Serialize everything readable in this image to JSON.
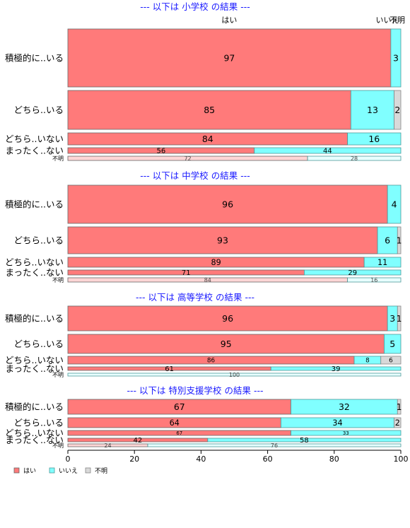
{
  "chart_data": {
    "type": "bar",
    "orientation": "horizontal",
    "stacked": true,
    "xlim": [
      0,
      100
    ],
    "xticks": [
      0,
      20,
      40,
      60,
      80,
      100
    ],
    "column_headers": [
      "はい",
      "いいえ",
      "不明"
    ],
    "legend": {
      "placement": "bottom-left",
      "entries": [
        "はい",
        "いいえ",
        "不明"
      ]
    },
    "series_colors": [
      "#ff7a7a",
      "#80ffff",
      "#d9d9d9"
    ],
    "panels": [
      {
        "title": "--- 以下は 小学校 の結果 ---",
        "rows": [
          {
            "label": "積極的に..いる",
            "values": [
              97,
              3,
              0
            ]
          },
          {
            "label": "どちら..いる",
            "values": [
              85,
              13,
              2
            ]
          },
          {
            "label": "どちら..いない",
            "values": [
              84,
              16,
              0
            ]
          },
          {
            "label": "まったく..ない",
            "values": [
              56,
              44,
              0
            ]
          },
          {
            "label": "不明",
            "values": [
              72,
              28,
              0
            ]
          }
        ]
      },
      {
        "title": "--- 以下は 中学校 の結果 ---",
        "rows": [
          {
            "label": "積極的に..いる",
            "values": [
              96,
              4,
              0
            ]
          },
          {
            "label": "どちら..いる",
            "values": [
              93,
              6,
              1
            ]
          },
          {
            "label": "どちら..いない",
            "values": [
              89,
              11,
              0
            ]
          },
          {
            "label": "まったく..ない",
            "values": [
              71,
              29,
              0
            ]
          },
          {
            "label": "不明",
            "values": [
              84,
              16,
              0
            ]
          }
        ]
      },
      {
        "title": "--- 以下は 高等学校 の結果 ---",
        "rows": [
          {
            "label": "積極的に..いる",
            "values": [
              96,
              3,
              1
            ]
          },
          {
            "label": "どちら..いる",
            "values": [
              95,
              5,
              0
            ]
          },
          {
            "label": "どちら..いない",
            "values": [
              86,
              8,
              6
            ]
          },
          {
            "label": "まったく..ない",
            "values": [
              61,
              39,
              0
            ]
          },
          {
            "label": "不明",
            "values": [
              0,
              100,
              0
            ]
          }
        ]
      },
      {
        "title": "--- 以下は 特別支援学校 の結果 ---",
        "rows": [
          {
            "label": "積極的に..いる",
            "values": [
              67,
              32,
              1
            ]
          },
          {
            "label": "どちら..いる",
            "values": [
              64,
              34,
              2
            ]
          },
          {
            "label": "どちら..いない",
            "values": [
              67,
              33,
              0
            ]
          },
          {
            "label": "まったく..ない",
            "values": [
              42,
              58,
              0
            ]
          },
          {
            "label": "不明",
            "values": [
              24,
              76,
              0
            ]
          }
        ]
      }
    ]
  }
}
